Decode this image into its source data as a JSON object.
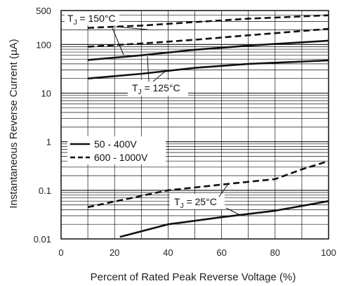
{
  "chart_data": {
    "type": "line",
    "title": "",
    "xlabel": "Percent of Rated Peak Reverse Voltage (%)",
    "ylabel": "Instantaneous Reverse Current (µA)",
    "xlim": [
      0,
      100
    ],
    "ylim": [
      0.01,
      500
    ],
    "yscale": "log",
    "grid": true,
    "x_ticks": [
      0,
      20,
      40,
      60,
      80,
      100
    ],
    "x_tick_labels": [
      "0",
      "20",
      "40",
      "60",
      "80",
      "100"
    ],
    "y_ticks": [
      0.01,
      0.1,
      1,
      10,
      100,
      500
    ],
    "y_tick_labels": [
      "0.01",
      "0.1",
      "1",
      "10",
      "100",
      "500"
    ],
    "legend": {
      "position": "middle-left",
      "entries": [
        {
          "label": "50 - 400V",
          "style": "solid"
        },
        {
          "label": "600 - 1000V",
          "style": "dashed"
        }
      ]
    },
    "series": [
      {
        "style": "dashed",
        "points": [
          [
            10,
            220
          ],
          [
            30,
            245
          ],
          [
            50,
            290
          ],
          [
            70,
            340
          ],
          [
            100,
            400
          ]
        ]
      },
      {
        "style": "dashed",
        "points": [
          [
            10,
            90
          ],
          [
            30,
            105
          ],
          [
            50,
            125
          ],
          [
            70,
            155
          ],
          [
            100,
            210
          ]
        ]
      },
      {
        "style": "solid",
        "points": [
          [
            10,
            48
          ],
          [
            30,
            60
          ],
          [
            50,
            78
          ],
          [
            70,
            95
          ],
          [
            100,
            120
          ]
        ]
      },
      {
        "style": "solid",
        "points": [
          [
            10,
            20
          ],
          [
            30,
            25
          ],
          [
            50,
            33
          ],
          [
            70,
            40
          ],
          [
            100,
            47
          ]
        ]
      },
      {
        "style": "dashed",
        "points": [
          [
            10,
            0.045
          ],
          [
            40,
            0.1
          ],
          [
            65,
            0.14
          ],
          [
            80,
            0.17
          ],
          [
            90,
            0.27
          ],
          [
            100,
            0.4
          ]
        ]
      },
      {
        "style": "solid",
        "points": [
          [
            22,
            0.011
          ],
          [
            40,
            0.02
          ],
          [
            60,
            0.028
          ],
          [
            80,
            0.038
          ],
          [
            100,
            0.06
          ]
        ]
      }
    ],
    "annotations": [
      {
        "id": "tj150",
        "prefix": "T",
        "subscript": "J",
        "text": " = 150°C"
      },
      {
        "id": "tj125",
        "prefix": "T",
        "subscript": "J",
        "text": " = 125°C"
      },
      {
        "id": "tj25",
        "prefix": "T",
        "subscript": "J",
        "text": " = 25°C"
      }
    ]
  }
}
